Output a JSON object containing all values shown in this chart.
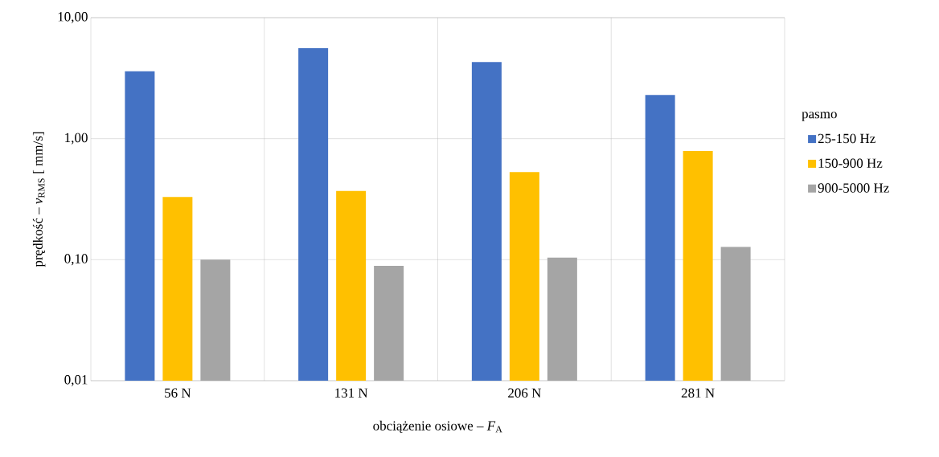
{
  "chart_data": {
    "type": "bar",
    "xlabel": "obciążenie osiowe – *F*$_{A}$",
    "ylabel": "prędkość – *v*$_{RMS}$ [ mm/s]",
    "legend_title": "pasmo",
    "categories": [
      "56 N",
      "131 N",
      "206 N",
      "281 N"
    ],
    "series": [
      {
        "name": "25-150 Hz",
        "color": "#4472c4",
        "values": [
          3.6,
          5.6,
          4.3,
          2.3
        ]
      },
      {
        "name": "150-900 Hz",
        "color": "#ffc000",
        "values": [
          0.33,
          0.37,
          0.53,
          0.79
        ]
      },
      {
        "name": "900-5000 Hz",
        "color": "#a5a5a5",
        "values": [
          0.1,
          0.089,
          0.104,
          0.128
        ]
      }
    ],
    "log": "y",
    "ylim": [
      0.01,
      10
    ],
    "yticks": [
      {
        "value": 0.01,
        "label": "0,01"
      },
      {
        "value": 0.1,
        "label": "0,10"
      },
      {
        "value": 1,
        "label": "1,00"
      },
      {
        "value": 10,
        "label": "10,00"
      }
    ],
    "grid": true,
    "legend": "right"
  }
}
